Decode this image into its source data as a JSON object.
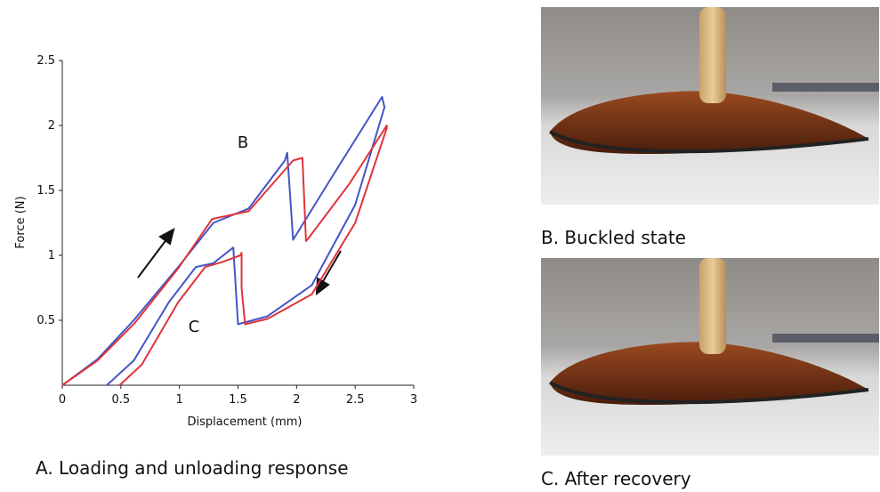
{
  "chart_data": {
    "type": "line",
    "xlabel": "Displacement (mm)",
    "ylabel": "Force (N)",
    "xlim": [
      0,
      3
    ],
    "ylim": [
      0,
      2.5
    ],
    "xticks": [
      0,
      0.5,
      1,
      1.5,
      2,
      2.5,
      3
    ],
    "yticks": [
      0.5,
      1,
      1.5,
      2,
      2.5
    ],
    "annotations": [
      "B",
      "C"
    ],
    "series": [
      {
        "color": "#4455c8",
        "x": [
          0,
          0.3,
          0.61,
          0.99,
          1.29,
          1.59,
          1.9,
          1.92,
          1.97,
          2.3,
          2.73,
          2.75,
          2.5,
          2.13,
          1.75,
          1.5,
          1.46,
          1.29,
          1.14,
          0.91,
          0.61,
          0.38
        ],
        "values": [
          0,
          0.2,
          0.5,
          0.91,
          1.25,
          1.36,
          1.73,
          1.79,
          1.12,
          1.6,
          2.22,
          2.14,
          1.39,
          0.77,
          0.53,
          0.47,
          1.06,
          0.94,
          0.91,
          0.64,
          0.19,
          0
        ]
      },
      {
        "color": "#e0343a",
        "x": [
          0,
          0.3,
          0.62,
          0.99,
          1.28,
          1.59,
          1.97,
          2.05,
          2.08,
          2.1,
          2.45,
          2.77,
          2.77,
          2.5,
          2.13,
          1.75,
          1.56,
          1.53,
          1.53,
          1.52,
          1.37,
          1.22,
          0.99,
          0.68,
          0.49
        ],
        "values": [
          0,
          0.19,
          0.48,
          0.9,
          1.28,
          1.34,
          1.73,
          1.75,
          1.11,
          1.13,
          1.55,
          2.0,
          1.98,
          1.25,
          0.7,
          0.51,
          0.47,
          0.75,
          1.02,
          1.0,
          0.95,
          0.91,
          0.64,
          0.16,
          0
        ]
      }
    ]
  },
  "figure_captions": [
    "A. Loading and unloading response",
    "B. Buckled state",
    "C. After recovery"
  ]
}
